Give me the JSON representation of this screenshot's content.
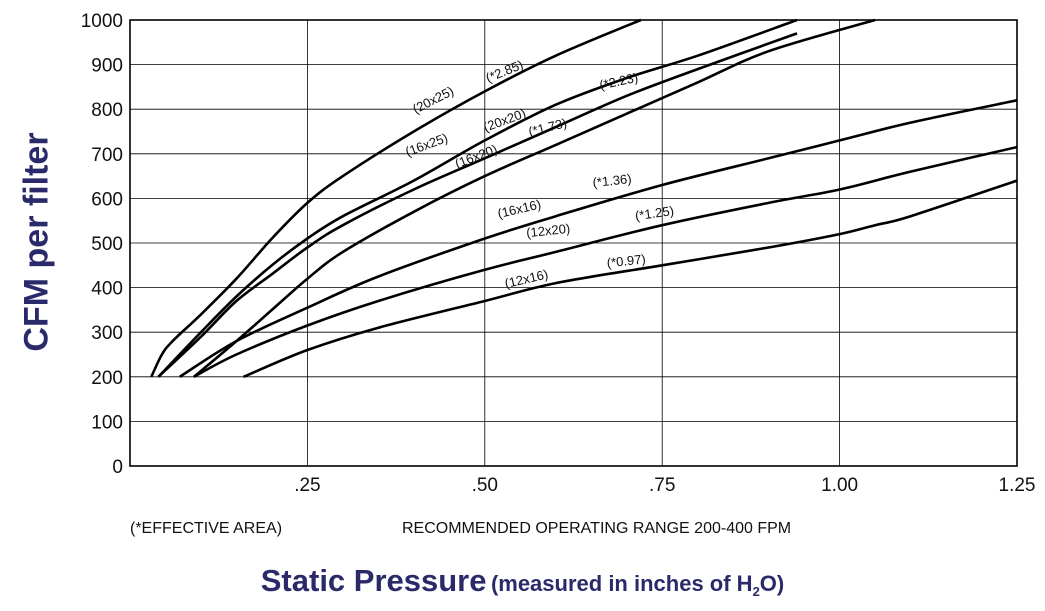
{
  "chart_data": {
    "type": "line",
    "ylabel": "CFM per filter",
    "xlabel": "Static Pressure",
    "xlabel_detail": {
      "prefix": "(measured in inches of H",
      "subscript": "2",
      "suffix": "O)"
    },
    "xlim": [
      0,
      1.25
    ],
    "ylim": [
      0,
      1000
    ],
    "x_ticks": [
      {
        "value": 0.25,
        "label": ".25"
      },
      {
        "value": 0.5,
        "label": ".50"
      },
      {
        "value": 0.75,
        "label": ".75"
      },
      {
        "value": 1.0,
        "label": "1.00"
      },
      {
        "value": 1.25,
        "label": "1.25"
      }
    ],
    "y_ticks": [
      {
        "value": 0,
        "label": "0"
      },
      {
        "value": 100,
        "label": "100"
      },
      {
        "value": 200,
        "label": "200"
      },
      {
        "value": 300,
        "label": "300"
      },
      {
        "value": 400,
        "label": "400"
      },
      {
        "value": 500,
        "label": "500"
      },
      {
        "value": 600,
        "label": "600"
      },
      {
        "value": 700,
        "label": "700"
      },
      {
        "value": 800,
        "label": "800"
      },
      {
        "value": 900,
        "label": "900"
      },
      {
        "value": 1000,
        "label": "1000"
      }
    ],
    "grid": true,
    "series": [
      {
        "name": "(20x25)",
        "effective_area": "(*2.85)",
        "x": [
          0.03,
          0.045,
          0.06,
          0.1,
          0.15,
          0.2,
          0.25,
          0.3,
          0.4,
          0.5,
          0.6,
          0.72
        ],
        "y": [
          200,
          250,
          280,
          340,
          420,
          510,
          590,
          650,
          750,
          840,
          920,
          1000
        ]
      },
      {
        "name": "(20x20)",
        "effective_area": "(*2.23)",
        "x": [
          0.04,
          0.1,
          0.15,
          0.2,
          0.25,
          0.3,
          0.4,
          0.5,
          0.6,
          0.7,
          0.8,
          0.94
        ],
        "y": [
          200,
          300,
          380,
          450,
          510,
          560,
          640,
          730,
          810,
          870,
          920,
          1000
        ]
      },
      {
        "name": "(16x25)",
        "effective_area": "",
        "x": [
          0.04,
          0.1,
          0.15,
          0.2,
          0.25,
          0.3,
          0.4,
          0.5,
          0.6,
          0.7,
          0.8,
          0.94
        ],
        "y": [
          200,
          290,
          370,
          430,
          490,
          540,
          620,
          690,
          760,
          830,
          890,
          970
        ]
      },
      {
        "name": "(16x20)",
        "effective_area": "(*1.73)",
        "x": [
          0.09,
          0.15,
          0.2,
          0.25,
          0.3,
          0.4,
          0.5,
          0.6,
          0.7,
          0.8,
          0.9,
          1.05
        ],
        "y": [
          200,
          280,
          350,
          420,
          480,
          570,
          650,
          720,
          790,
          860,
          930,
          1000
        ]
      },
      {
        "name": "(16x16)",
        "effective_area": "(*1.36)",
        "x": [
          0.07,
          0.15,
          0.25,
          0.35,
          0.5,
          0.6,
          0.75,
          0.9,
          1.0,
          1.1,
          1.25
        ],
        "y": [
          200,
          280,
          355,
          425,
          510,
          560,
          630,
          690,
          730,
          770,
          820
        ]
      },
      {
        "name": "(12x20)",
        "effective_area": "(*1.25)",
        "x": [
          0.09,
          0.15,
          0.25,
          0.35,
          0.5,
          0.6,
          0.75,
          0.9,
          1.0,
          1.1,
          1.25
        ],
        "y": [
          200,
          250,
          315,
          370,
          440,
          480,
          540,
          590,
          620,
          660,
          715
        ]
      },
      {
        "name": "(12x16)",
        "effective_area": "(*0.97)",
        "x": [
          0.16,
          0.25,
          0.35,
          0.5,
          0.6,
          0.75,
          0.9,
          1.0,
          1.05,
          1.1,
          1.25
        ],
        "y": [
          200,
          260,
          310,
          370,
          410,
          450,
          490,
          520,
          540,
          560,
          640
        ]
      }
    ]
  },
  "footnote": "(*EFFECTIVE AREA)",
  "operating_range": "RECOMMENDED OPERATING RANGE 200-400 FPM",
  "colors": {
    "line": "#000000",
    "grid": "#000000",
    "title": "#2a2a6b"
  }
}
